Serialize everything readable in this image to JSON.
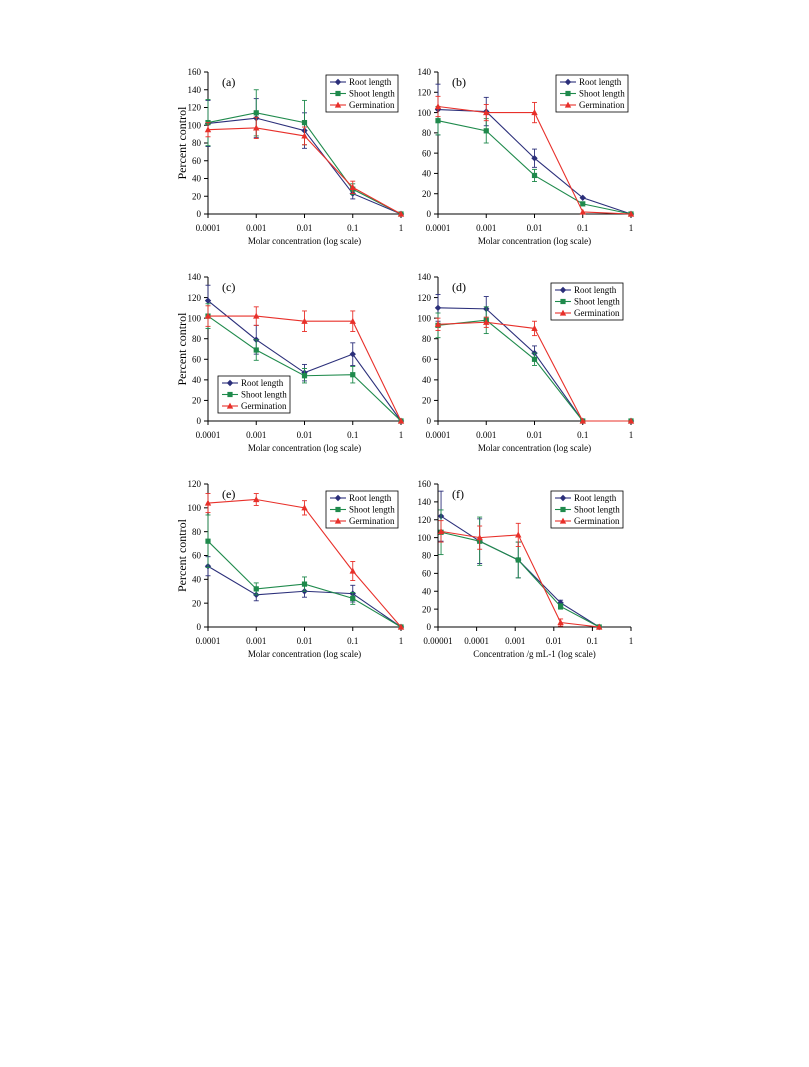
{
  "colors": {
    "root": "#2b2f7a",
    "shoot": "#1f8a4c",
    "germ": "#e8302a",
    "axis": "#000000"
  },
  "legend_labels": [
    "Root length",
    "Shoot length",
    "Germination"
  ],
  "chart_data": [
    {
      "panel": "(a)",
      "type": "line",
      "ylabel": "Percent control",
      "xlabel": "Molar concentration (log scale)",
      "xscale": "log",
      "xticks": [
        "0.0001",
        "0.001",
        "0.01",
        "0.1",
        "1"
      ],
      "ylim": [
        0,
        160
      ],
      "yticks": [
        0,
        20,
        40,
        60,
        80,
        100,
        120,
        140,
        160
      ],
      "legend": "top-right",
      "series": [
        {
          "name": "Root length",
          "color": "root",
          "marker": "diamond",
          "x": [
            0.0001,
            0.001,
            0.01,
            0.1,
            1
          ],
          "y": [
            102,
            108,
            94,
            23,
            0
          ],
          "err": [
            26,
            22,
            20,
            6,
            0
          ]
        },
        {
          "name": "Shoot length",
          "color": "shoot",
          "marker": "square",
          "x": [
            0.0001,
            0.001,
            0.01,
            0.1,
            1
          ],
          "y": [
            103,
            114,
            103,
            28,
            0
          ],
          "err": [
            26,
            26,
            25,
            6,
            0
          ]
        },
        {
          "name": "Germination",
          "color": "germ",
          "marker": "triangle",
          "x": [
            0.0001,
            0.001,
            0.01,
            0.1,
            1
          ],
          "y": [
            95,
            97,
            88,
            30,
            0
          ],
          "err": [
            8,
            12,
            10,
            7,
            0
          ]
        }
      ]
    },
    {
      "panel": "(b)",
      "type": "line",
      "ylabel": "",
      "xlabel": "Molar concentration (log scale)",
      "xscale": "log",
      "xticks": [
        "0.0001",
        "0.001",
        "0.01",
        "0.1",
        "1"
      ],
      "ylim": [
        0,
        140
      ],
      "yticks": [
        0,
        20,
        40,
        60,
        80,
        100,
        120,
        140
      ],
      "legend": "top-right",
      "series": [
        {
          "name": "Root length",
          "color": "root",
          "marker": "diamond",
          "x": [
            0.0001,
            0.001,
            0.01,
            0.1,
            1
          ],
          "y": [
            103,
            101,
            55,
            16,
            0
          ],
          "err": [
            25,
            14,
            9,
            0,
            0
          ]
        },
        {
          "name": "Shoot length",
          "color": "shoot",
          "marker": "square",
          "x": [
            0.0001,
            0.001,
            0.01,
            0.1,
            1
          ],
          "y": [
            92,
            82,
            38,
            10,
            0
          ],
          "err": [
            14,
            12,
            6,
            0,
            0
          ]
        },
        {
          "name": "Germination",
          "color": "germ",
          "marker": "triangle",
          "x": [
            0.0001,
            0.001,
            0.01,
            0.1,
            1
          ],
          "y": [
            106,
            100,
            100,
            2,
            0
          ],
          "err": [
            10,
            8,
            10,
            0,
            0
          ]
        }
      ]
    },
    {
      "panel": "(c)",
      "type": "line",
      "ylabel": "Percent control",
      "xlabel": "Molar concentration (log scale)",
      "xscale": "log",
      "xticks": [
        "0.0001",
        "0.001",
        "0.01",
        "0.1",
        "1"
      ],
      "ylim": [
        0,
        140
      ],
      "yticks": [
        0,
        20,
        40,
        60,
        80,
        100,
        120,
        140
      ],
      "legend": "bottom-left",
      "series": [
        {
          "name": "Root length",
          "color": "root",
          "marker": "diamond",
          "x": [
            0.0001,
            0.001,
            0.01,
            0.1,
            1
          ],
          "y": [
            117,
            79,
            47,
            65,
            0
          ],
          "err": [
            15,
            14,
            8,
            11,
            0
          ]
        },
        {
          "name": "Shoot length",
          "color": "shoot",
          "marker": "square",
          "x": [
            0.0001,
            0.001,
            0.01,
            0.1,
            1
          ],
          "y": [
            102,
            69,
            44,
            45,
            0
          ],
          "err": [
            12,
            10,
            7,
            8,
            0
          ]
        },
        {
          "name": "Germination",
          "color": "germ",
          "marker": "triangle",
          "x": [
            0.0001,
            0.001,
            0.01,
            0.1,
            1
          ],
          "y": [
            102,
            102,
            97,
            97,
            0
          ],
          "err": [
            10,
            9,
            10,
            10,
            0
          ]
        }
      ]
    },
    {
      "panel": "(d)",
      "type": "line",
      "ylabel": "",
      "xlabel": "Molar concentration (log scale)",
      "xscale": "log",
      "xticks": [
        "0.0001",
        "0.001",
        "0.01",
        "0.1",
        "1"
      ],
      "ylim": [
        0,
        140
      ],
      "yticks": [
        0,
        20,
        40,
        60,
        80,
        100,
        120,
        140
      ],
      "legend": "top-right",
      "series": [
        {
          "name": "Root length",
          "color": "root",
          "marker": "diamond",
          "x": [
            0.0001,
            0.001,
            0.01,
            0.1,
            1
          ],
          "y": [
            110,
            109,
            66,
            0,
            0
          ],
          "err": [
            13,
            12,
            7,
            0,
            0
          ]
        },
        {
          "name": "Shoot length",
          "color": "shoot",
          "marker": "square",
          "x": [
            0.0001,
            0.001,
            0.01,
            0.1,
            1
          ],
          "y": [
            93,
            98,
            60,
            0,
            0
          ],
          "err": [
            12,
            13,
            6,
            0,
            0
          ]
        },
        {
          "name": "Germination",
          "color": "germ",
          "marker": "triangle",
          "x": [
            0.0001,
            0.001,
            0.01,
            0.1,
            1
          ],
          "y": [
            94,
            96,
            90,
            0,
            0
          ],
          "err": [
            6,
            5,
            7,
            0,
            0
          ]
        }
      ]
    },
    {
      "panel": "(e)",
      "type": "line",
      "ylabel": "Percent control",
      "xlabel": "Molar concentration (log scale)",
      "xscale": "log",
      "xticks": [
        "0.0001",
        "0.001",
        "0.01",
        "0.1",
        "1"
      ],
      "ylim": [
        0,
        120
      ],
      "yticks": [
        0,
        20,
        40,
        60,
        80,
        100,
        120
      ],
      "legend": "top-right",
      "series": [
        {
          "name": "Root length",
          "color": "root",
          "marker": "diamond",
          "x": [
            0.0001,
            0.001,
            0.01,
            0.1,
            1
          ],
          "y": [
            51,
            27,
            30,
            28,
            0
          ],
          "err": [
            8,
            5,
            5,
            7,
            0
          ]
        },
        {
          "name": "Shoot length",
          "color": "shoot",
          "marker": "square",
          "x": [
            0.0001,
            0.001,
            0.01,
            0.1,
            1
          ],
          "y": [
            72,
            32,
            36,
            24,
            0
          ],
          "err": [
            22,
            5,
            6,
            5,
            0
          ]
        },
        {
          "name": "Germination",
          "color": "germ",
          "marker": "triangle",
          "x": [
            0.0001,
            0.001,
            0.01,
            0.1,
            1
          ],
          "y": [
            104,
            107,
            100,
            47,
            0
          ],
          "err": [
            8,
            5,
            6,
            8,
            0
          ]
        }
      ]
    },
    {
      "panel": "(f)",
      "type": "line",
      "ylabel": "",
      "xlabel": "Concentration /g mL-1 (log scale)",
      "xscale": "log",
      "xticks": [
        "0.00001",
        "0.0001",
        "0.001",
        "0.01",
        "0.1",
        "1"
      ],
      "ylim": [
        0,
        160
      ],
      "yticks": [
        0,
        20,
        40,
        60,
        80,
        100,
        120,
        140,
        160
      ],
      "legend": "top-right",
      "series": [
        {
          "name": "Root length",
          "color": "root",
          "marker": "diamond",
          "x": [
            1.2e-05,
            0.00012,
            0.0012,
            0.015,
            0.15
          ],
          "y": [
            124,
            96,
            75,
            27,
            0
          ],
          "err": [
            28,
            25,
            20,
            3,
            0
          ]
        },
        {
          "name": "Shoot length",
          "color": "shoot",
          "marker": "square",
          "x": [
            1.2e-05,
            0.00012,
            0.0012,
            0.015,
            0.15
          ],
          "y": [
            106,
            96,
            75,
            23,
            0
          ],
          "err": [
            25,
            27,
            20,
            3,
            0
          ]
        },
        {
          "name": "Germination",
          "color": "germ",
          "marker": "triangle",
          "x": [
            1.2e-05,
            0.00012,
            0.0012,
            0.015,
            0.15
          ],
          "y": [
            107,
            100,
            103,
            5,
            0
          ],
          "err": [
            12,
            13,
            13,
            4,
            0
          ]
        }
      ]
    }
  ]
}
